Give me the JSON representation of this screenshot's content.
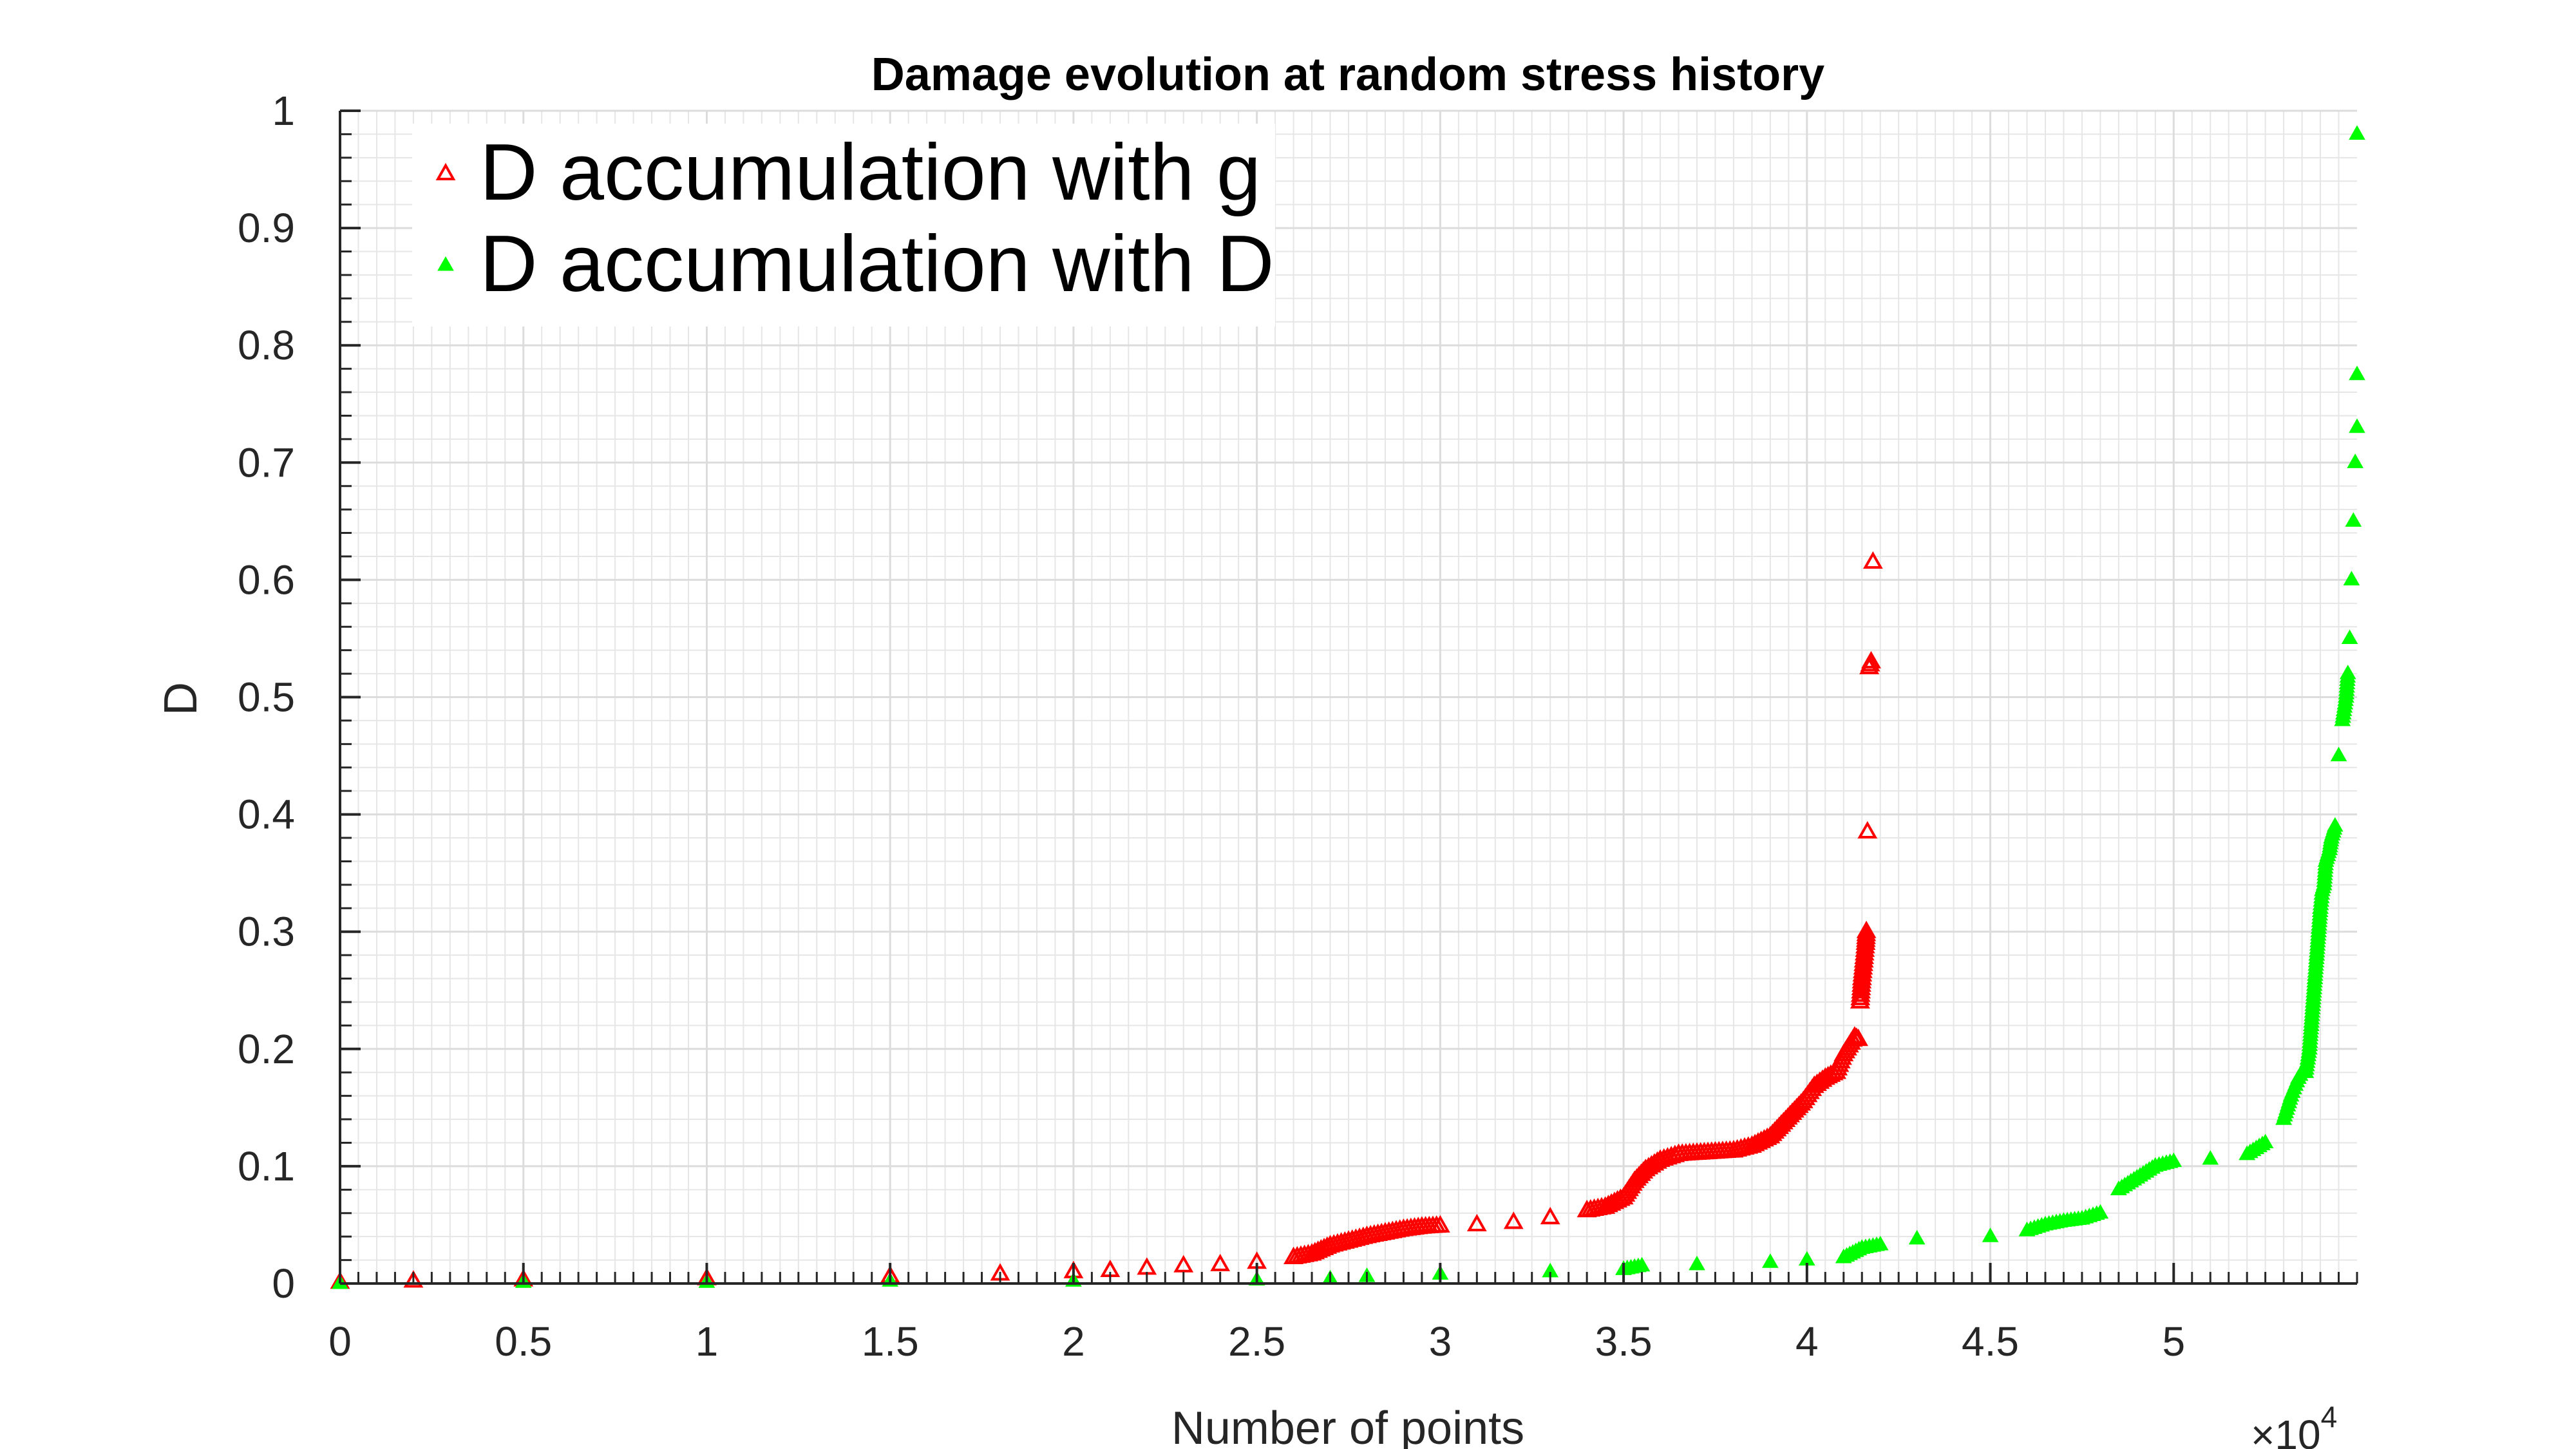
{
  "chart_data": {
    "type": "scatter",
    "title": "Damage evolution at random stress history",
    "xlabel": "Number of points",
    "ylabel": "D",
    "x_exponent_label": "×10",
    "x_exponent": "4",
    "xlim": [
      0,
      55000
    ],
    "ylim": [
      0,
      1
    ],
    "x_ticks": [
      0,
      5000,
      10000,
      15000,
      20000,
      25000,
      30000,
      35000,
      40000,
      45000,
      50000
    ],
    "x_tick_labels": [
      "0",
      "0.5",
      "1",
      "1.5",
      "2",
      "2.5",
      "3",
      "3.5",
      "4",
      "4.5",
      "5"
    ],
    "y_ticks": [
      0,
      0.1,
      0.2,
      0.3,
      0.4,
      0.5,
      0.6,
      0.7,
      0.8,
      0.9,
      1
    ],
    "y_tick_labels": [
      "0",
      "0.1",
      "0.2",
      "0.3",
      "0.4",
      "0.5",
      "0.6",
      "0.7",
      "0.8",
      "0.9",
      "1"
    ],
    "grid": true,
    "minor_grid": true,
    "legend_position": "top-left",
    "series": [
      {
        "name": "D accumulation with g",
        "color": "#ff0000",
        "marker": "triangle-open",
        "x": [
          0,
          2000,
          5000,
          10000,
          15000,
          18000,
          20000,
          21000,
          22000,
          23000,
          24000,
          25000,
          26000,
          26500,
          27000,
          27500,
          28000,
          28500,
          29000,
          29500,
          30000,
          31000,
          32000,
          33000,
          34000,
          34500,
          35000,
          35300,
          35600,
          36000,
          36500,
          37000,
          37500,
          38000,
          38500,
          39000,
          39300,
          39600,
          39900,
          40200,
          40500,
          40800,
          41000,
          41200,
          41300,
          41400,
          41450,
          41500,
          41550,
          41600,
          41620,
          41650,
          41700,
          41750,
          41800
        ],
        "y": [
          0.001,
          0.002,
          0.003,
          0.004,
          0.006,
          0.008,
          0.01,
          0.011,
          0.013,
          0.015,
          0.016,
          0.018,
          0.022,
          0.025,
          0.032,
          0.036,
          0.04,
          0.043,
          0.046,
          0.048,
          0.049,
          0.05,
          0.052,
          0.056,
          0.062,
          0.065,
          0.073,
          0.087,
          0.097,
          0.105,
          0.11,
          0.111,
          0.112,
          0.113,
          0.117,
          0.125,
          0.135,
          0.145,
          0.155,
          0.168,
          0.175,
          0.18,
          0.195,
          0.205,
          0.21,
          0.208,
          0.24,
          0.26,
          0.275,
          0.29,
          0.3,
          0.385,
          0.525,
          0.53,
          0.615
        ]
      },
      {
        "name": "D accumulation with D",
        "color": "#00ff00",
        "marker": "triangle-filled",
        "x": [
          0,
          5000,
          10000,
          15000,
          20000,
          25000,
          27000,
          28000,
          30000,
          33000,
          35000,
          35500,
          37000,
          39000,
          40000,
          41000,
          41500,
          42000,
          43000,
          45000,
          46000,
          46500,
          47000,
          47500,
          48000,
          48500,
          49000,
          49500,
          50000,
          51000,
          52000,
          52500,
          53000,
          53200,
          53400,
          53500,
          53600,
          53700,
          53750,
          53800,
          53850,
          53900,
          53950,
          54000,
          54050,
          54100,
          54150,
          54200,
          54250,
          54300,
          54400,
          54500,
          54600,
          54700,
          54750,
          54800,
          54850,
          54900,
          54950,
          55000,
          55000
        ],
        "y": [
          0.0,
          0.001,
          0.001,
          0.002,
          0.002,
          0.003,
          0.004,
          0.006,
          0.008,
          0.01,
          0.012,
          0.015,
          0.016,
          0.018,
          0.02,
          0.022,
          0.03,
          0.033,
          0.038,
          0.04,
          0.045,
          0.05,
          0.053,
          0.055,
          0.06,
          0.08,
          0.09,
          0.1,
          0.104,
          0.106,
          0.11,
          0.12,
          0.14,
          0.16,
          0.175,
          0.18,
          0.18,
          0.2,
          0.22,
          0.24,
          0.26,
          0.28,
          0.3,
          0.32,
          0.335,
          0.34,
          0.36,
          0.365,
          0.37,
          0.38,
          0.39,
          0.45,
          0.48,
          0.5,
          0.52,
          0.55,
          0.6,
          0.65,
          0.7,
          0.73,
          0.775
        ]
      }
    ],
    "extra_points": [
      {
        "series": 1,
        "x": 55000,
        "y": 0.98
      }
    ]
  }
}
